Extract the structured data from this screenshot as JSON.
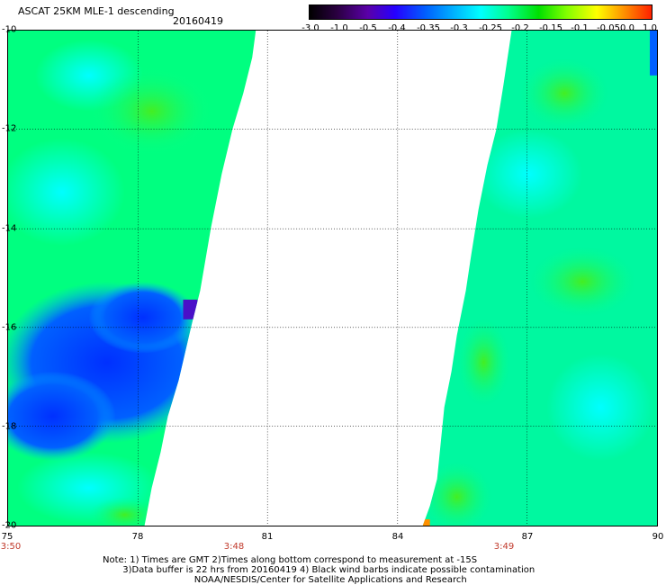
{
  "header": {
    "title": "ASCAT 25KM MLE-1 descending",
    "date": "20160419"
  },
  "colorbar": {
    "ticks": [
      "-3.0",
      "-1.0",
      "-0.5",
      "-0.4",
      "-0.35",
      "-0.3",
      "-0.25",
      "-0.2",
      "-0.15",
      "-0.1",
      "-0.05",
      "0.0",
      "1.0"
    ],
    "colors": [
      "#000000",
      "#2a0040",
      "#5a00a8",
      "#2600ff",
      "#0060ff",
      "#00b0ff",
      "#00ffff",
      "#00ff90",
      "#00e000",
      "#80ff00",
      "#ffff00",
      "#ff9000",
      "#ff2000"
    ]
  },
  "axes": {
    "lat_labels": [
      "-10",
      "-12",
      "-14",
      "-16",
      "-18",
      "-20"
    ],
    "lon_labels": [
      "75",
      "78",
      "81",
      "84",
      "87",
      "90"
    ]
  },
  "times": [
    "3:50",
    "3:48",
    "3:49"
  ],
  "note": {
    "line1": "Note: 1) Times are GMT 2)Times along bottom correspond to measurement at -15S",
    "line2": "       3)Data buffer is 22 hrs from 20160419 4) Black wind barbs indicate possible contamination",
    "line3": "                                NOAA/NESDIS/Center for Satellite Applications and Research"
  }
}
